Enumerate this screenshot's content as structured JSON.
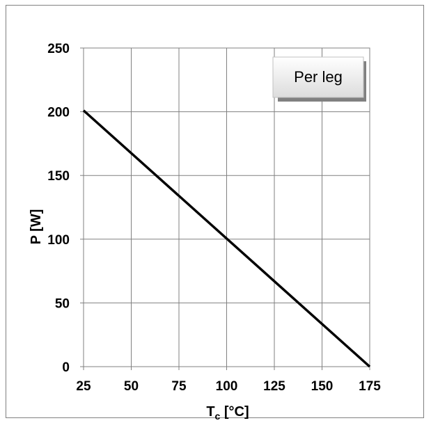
{
  "chart_data": {
    "type": "line",
    "title": "",
    "xlabel_main": "T",
    "xlabel_sub": "c",
    "xlabel_unit": " [°C]",
    "ylabel": "P [W]",
    "xlim": [
      25,
      175
    ],
    "ylim": [
      0,
      250
    ],
    "xticks": [
      25,
      50,
      75,
      100,
      125,
      150,
      175
    ],
    "yticks": [
      0,
      50,
      100,
      150,
      200,
      250
    ],
    "grid": true,
    "legend_position": "top-right",
    "legend_label": "Per leg",
    "series": [
      {
        "x": [
          25,
          175
        ],
        "y": [
          201,
          0
        ],
        "color": "#000000"
      }
    ]
  }
}
